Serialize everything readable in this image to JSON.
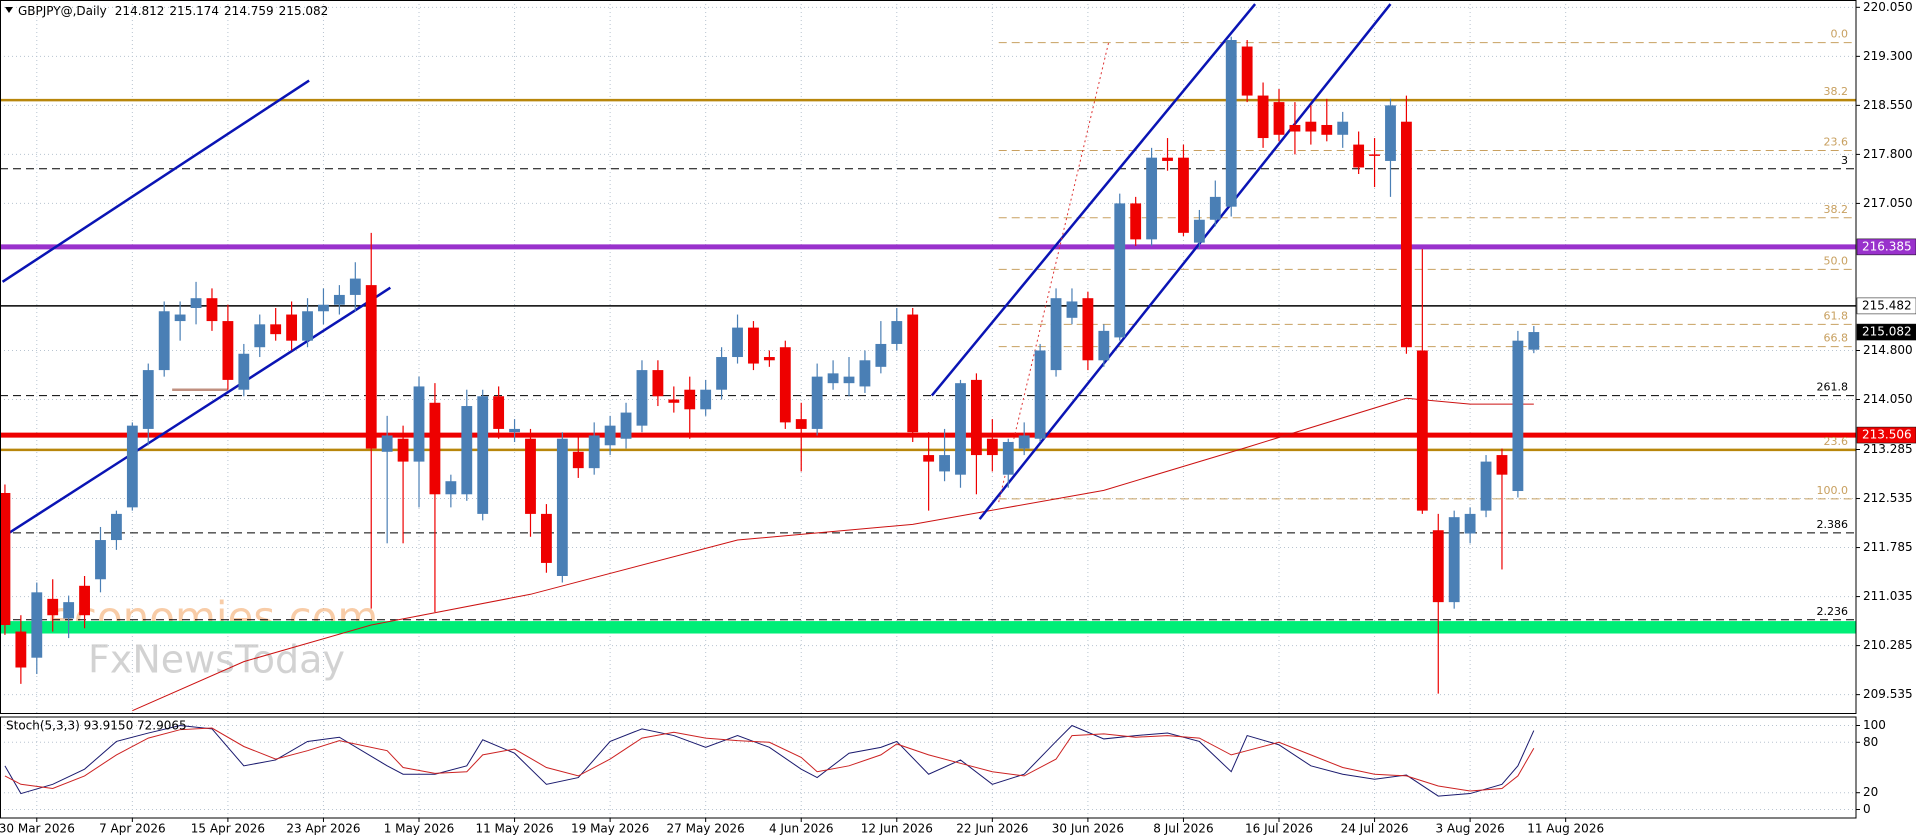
{
  "chart_data": [
    {
      "type": "candlestick",
      "title": "GBPJPY@,Daily",
      "up_color": "#4a7fb5",
      "down_color": "#ee0000",
      "open": [
        212.62,
        210.5,
        210.1,
        211.0,
        210.7,
        211.2,
        211.3,
        211.9,
        212.4,
        213.6,
        214.5,
        215.25,
        215.45,
        215.6,
        215.25,
        214.2,
        214.85,
        215.2,
        215.35,
        214.95,
        215.4,
        215.5,
        215.65,
        215.8,
        213.25,
        213.45,
        213.1,
        214.0,
        212.6,
        212.6,
        212.3,
        214.1,
        213.55,
        213.45,
        212.3,
        211.35,
        213.25,
        213.0,
        213.35,
        213.45,
        213.65,
        214.5,
        214.05,
        214.2,
        213.9,
        214.2,
        214.7,
        215.15,
        214.7,
        214.85,
        213.75,
        213.6,
        214.3,
        214.3,
        214.25,
        214.55,
        214.9,
        215.35,
        213.2,
        212.95,
        212.9,
        214.35,
        213.45,
        212.9,
        213.3,
        213.45,
        214.5,
        215.3,
        215.6,
        214.65,
        215.0,
        217.05,
        216.5,
        217.75,
        217.75,
        216.45,
        216.8,
        217.0,
        219.45,
        218.7,
        218.6,
        218.25,
        218.3,
        218.25,
        218.1,
        217.95,
        217.8,
        217.7,
        218.3,
        214.8,
        212.05,
        210.95,
        212.0,
        212.35,
        213.2,
        212.65,
        214.812
      ],
      "high": [
        212.75,
        210.75,
        211.25,
        211.3,
        211.05,
        211.35,
        212.1,
        212.35,
        213.7,
        214.6,
        215.55,
        215.55,
        215.85,
        215.75,
        215.5,
        214.9,
        215.35,
        215.45,
        215.55,
        215.6,
        215.75,
        215.8,
        216.15,
        216.6,
        213.8,
        213.65,
        214.4,
        214.3,
        212.9,
        214.2,
        214.2,
        214.25,
        213.75,
        213.6,
        212.45,
        213.55,
        213.5,
        213.7,
        213.8,
        214.0,
        214.65,
        214.65,
        214.25,
        214.4,
        214.35,
        214.85,
        215.35,
        215.25,
        214.8,
        214.95,
        214.0,
        214.6,
        214.65,
        214.7,
        214.8,
        215.25,
        215.45,
        215.45,
        213.55,
        213.6,
        214.35,
        214.45,
        213.75,
        213.45,
        213.7,
        214.9,
        215.75,
        215.75,
        215.7,
        215.2,
        217.2,
        217.15,
        217.9,
        218.05,
        217.95,
        216.95,
        217.4,
        219.6,
        219.55,
        218.9,
        218.8,
        218.6,
        218.55,
        218.65,
        218.45,
        218.15,
        218.05,
        218.65,
        218.7,
        216.35,
        212.3,
        212.35,
        212.4,
        213.2,
        213.3,
        215.1,
        215.174
      ],
      "low": [
        210.45,
        209.7,
        209.85,
        210.5,
        210.4,
        210.55,
        211.1,
        211.75,
        212.35,
        213.35,
        214.4,
        214.95,
        215.2,
        215.1,
        214.2,
        214.1,
        214.7,
        214.95,
        214.8,
        214.85,
        215.2,
        215.35,
        215.4,
        210.85,
        211.85,
        211.85,
        212.4,
        210.8,
        212.4,
        212.5,
        212.2,
        213.45,
        213.4,
        211.95,
        211.4,
        211.25,
        212.85,
        212.9,
        213.2,
        213.3,
        213.55,
        213.95,
        213.85,
        213.45,
        213.8,
        214.05,
        214.6,
        214.5,
        214.55,
        213.6,
        212.95,
        213.5,
        214.2,
        214.1,
        214.15,
        214.45,
        214.8,
        213.4,
        212.35,
        212.8,
        212.7,
        212.6,
        212.95,
        212.7,
        213.2,
        213.4,
        214.4,
        215.2,
        214.5,
        214.55,
        214.95,
        216.4,
        216.4,
        217.55,
        216.55,
        216.35,
        216.7,
        216.85,
        218.6,
        217.9,
        218.0,
        217.8,
        217.95,
        218.0,
        217.9,
        217.5,
        217.3,
        217.15,
        214.75,
        212.3,
        209.55,
        210.85,
        211.85,
        212.25,
        211.45,
        212.55,
        214.759
      ],
      "close": [
        210.6,
        209.95,
        211.1,
        210.75,
        210.95,
        210.75,
        211.9,
        212.3,
        213.65,
        214.5,
        215.4,
        215.35,
        215.6,
        215.25,
        214.35,
        214.75,
        215.2,
        215.05,
        214.95,
        215.4,
        215.5,
        215.65,
        215.9,
        213.3,
        213.5,
        213.1,
        214.25,
        212.6,
        212.8,
        213.95,
        214.1,
        213.6,
        213.6,
        212.3,
        211.55,
        213.45,
        213.0,
        213.5,
        213.65,
        213.85,
        214.5,
        214.1,
        214.0,
        213.9,
        214.2,
        214.7,
        215.15,
        214.6,
        214.65,
        213.7,
        213.6,
        214.4,
        214.45,
        214.4,
        214.65,
        214.9,
        215.25,
        213.55,
        213.1,
        213.2,
        214.3,
        213.2,
        213.2,
        213.4,
        213.5,
        214.8,
        215.6,
        215.55,
        214.65,
        215.1,
        217.05,
        216.5,
        217.75,
        217.7,
        216.6,
        216.8,
        217.15,
        219.55,
        218.7,
        218.05,
        218.1,
        218.15,
        218.15,
        218.1,
        218.3,
        217.6,
        217.78,
        218.55,
        214.85,
        212.35,
        210.95,
        212.25,
        212.3,
        213.1,
        212.9,
        214.95,
        215.082
      ],
      "xlim": [
        -0.31,
        116.23
      ],
      "ylim": [
        209.254,
        220.162
      ],
      "xticks": [
        {
          "value": 2,
          "label": "30 Mar 2026"
        },
        {
          "value": 8,
          "label": "7 Apr 2026"
        },
        {
          "value": 14,
          "label": "15 Apr 2026"
        },
        {
          "value": 20,
          "label": "23 Apr 2026"
        },
        {
          "value": 26,
          "label": "1 May 2026"
        },
        {
          "value": 32,
          "label": "11 May 2026"
        },
        {
          "value": 38,
          "label": "19 May 2026"
        },
        {
          "value": 44,
          "label": "27 May 2026"
        },
        {
          "value": 50,
          "label": "4 Jun 2026"
        },
        {
          "value": 56,
          "label": "12 Jun 2026"
        },
        {
          "value": 62,
          "label": "22 Jun 2026"
        },
        {
          "value": 68,
          "label": "30 Jun 2026"
        },
        {
          "value": 74,
          "label": "8 Jul 2026"
        },
        {
          "value": 80,
          "label": "16 Jul 2026"
        },
        {
          "value": 86,
          "label": "24 Jul 2026"
        },
        {
          "value": 92,
          "label": "3 Aug 2026"
        },
        {
          "value": 98,
          "label": "11 Aug 2026"
        }
      ],
      "yticks": [
        {
          "value": 220.05,
          "label": "220.050"
        },
        {
          "value": 219.3,
          "label": "219.300"
        },
        {
          "value": 218.55,
          "label": "218.550"
        },
        {
          "value": 217.8,
          "label": "217.800"
        },
        {
          "value": 217.05,
          "label": "217.050"
        },
        {
          "value": 214.8,
          "label": "214.800"
        },
        {
          "value": 214.05,
          "label": "214.050"
        },
        213.285,
        212.535,
        211.785,
        211.035,
        210.285,
        209.535
      ],
      "grid": true,
      "ma": {
        "color": "#cc1111",
        "x": [
          8,
          15,
          23,
          33,
          46,
          57,
          69,
          78,
          88,
          92,
          96
        ],
        "values": [
          209.29,
          210.04,
          210.6,
          211.07,
          211.9,
          212.14,
          212.66,
          213.32,
          214.07,
          213.98,
          213.98
        ]
      },
      "zones": [
        {
          "from": 210.47,
          "to": 210.66,
          "color": "#00ee77"
        }
      ],
      "levels": [
        {
          "value": 219.51,
          "label": "0.0",
          "color": "#c8a060",
          "width": 1,
          "dash": true,
          "start": 62.4
        },
        {
          "value": 218.63,
          "label": "38.2",
          "color": "#b8860b",
          "width": 2.5,
          "dash": false
        },
        {
          "value": 217.86,
          "label": "23.6",
          "color": "#c8a060",
          "width": 1,
          "dash": true,
          "start": 62.4
        },
        {
          "value": 217.58,
          "label": "3",
          "color": "#000000",
          "width": 1,
          "dash": true
        },
        {
          "value": 216.83,
          "label": "38.2",
          "color": "#c8a060",
          "width": 1,
          "dash": true,
          "start": 62.4
        },
        {
          "value": 216.385,
          "color": "#9932cc",
          "width": 5,
          "dash": false,
          "box": "#9932cc",
          "box_text": "#ffffff"
        },
        {
          "value": 216.04,
          "label": "50.0",
          "color": "#c8a060",
          "width": 1,
          "dash": true,
          "start": 62.4
        },
        {
          "value": 215.482,
          "color": "#000000",
          "width": 1.5,
          "dash": false,
          "box": "#ffffff",
          "box_text": "#000000"
        },
        {
          "value": 215.2,
          "label": "61.8",
          "color": "#c8a060",
          "width": 1,
          "dash": true,
          "start": 62.4
        },
        {
          "value": 215.082,
          "color": "#000000",
          "width": 0,
          "dash": false,
          "box": "#000000",
          "box_text": "#ffffff"
        },
        {
          "value": 214.86,
          "label": "66.8",
          "color": "#c8a060",
          "width": 1,
          "dash": true,
          "start": 62.4
        },
        {
          "value": 214.11,
          "label": "261.8",
          "color": "#000000",
          "width": 1,
          "dash": true
        },
        {
          "value": 213.506,
          "color": "#ee0000",
          "width": 5,
          "dash": false,
          "box": "#ee0000",
          "box_text": "#ffffff"
        },
        {
          "value": 213.28,
          "label": "23.6",
          "color": "#b8860b",
          "width": 2.5,
          "dash": false
        },
        {
          "value": 212.53,
          "label": "100.0",
          "color": "#c8a060",
          "width": 1,
          "dash": true,
          "start": 62.4
        },
        {
          "value": 212.01,
          "label": "2.386",
          "color": "#000000",
          "width": 1,
          "dash": true
        },
        {
          "value": 210.68,
          "label": "2.236",
          "color": "#000000",
          "width": 1,
          "dash": true
        }
      ],
      "trendlines": [
        {
          "x": [
            -0.31,
            24.2
          ],
          "y": [
            211.92,
            215.76
          ],
          "color": "#0a14b4",
          "dash": false
        },
        {
          "x": [
            -0.15,
            19.1
          ],
          "y": [
            215.85,
            218.93
          ],
          "color": "#0a14b4",
          "dash": false
        },
        {
          "x": [
            58.2,
            78.5
          ],
          "y": [
            214.11,
            220.1
          ],
          "color": "#0a14b4",
          "dash": false
        },
        {
          "x": [
            61.2,
            87
          ],
          "y": [
            212.22,
            220.1
          ],
          "color": "#0a14b4",
          "dash": false
        },
        {
          "x": [
            62.4,
            69.3
          ],
          "y": [
            212.48,
            219.51
          ],
          "color": "#dd3333",
          "dash": true
        },
        {
          "x": [
            10.5,
            14
          ],
          "y": [
            214.2,
            214.2
          ],
          "color": "#c09080",
          "dash": false
        }
      ],
      "watermark": [
        "economies.com",
        "FxNewsToday"
      ]
    },
    {
      "type": "line",
      "title": "Stoch(5,3,3) 93.9150 72.9065",
      "x": [
        0,
        1,
        3,
        5,
        7,
        9,
        11,
        13,
        15,
        17,
        19,
        21,
        24,
        25,
        27,
        29,
        30,
        32,
        34,
        36,
        38,
        40,
        42,
        44,
        46,
        48,
        50,
        51,
        53,
        55,
        56,
        58,
        60,
        62,
        64,
        66,
        67,
        69,
        71,
        73,
        75,
        77,
        78,
        80,
        82,
        84,
        86,
        88,
        90,
        92,
        94,
        95,
        96
      ],
      "series": [
        {
          "color": "#1a1a6e",
          "values": [
            52,
            19,
            30,
            48,
            81,
            91,
            100,
            96,
            52,
            59,
            81,
            86,
            52,
            42,
            42,
            52,
            83,
            67,
            30,
            38,
            81,
            96,
            88,
            74,
            88,
            74,
            48,
            38,
            67,
            74,
            81,
            42,
            59,
            30,
            42,
            81,
            100,
            84,
            88,
            91,
            81,
            45,
            88,
            77,
            52,
            42,
            36,
            41,
            16,
            19,
            30,
            52,
            93.915
          ]
        },
        {
          "color": "#cc2222",
          "values": [
            40,
            30,
            25,
            40,
            65,
            85,
            95,
            97,
            75,
            60,
            70,
            82,
            70,
            50,
            43,
            45,
            65,
            72,
            50,
            40,
            60,
            85,
            92,
            85,
            82,
            80,
            62,
            45,
            52,
            65,
            78,
            65,
            55,
            45,
            40,
            60,
            88,
            90,
            86,
            88,
            85,
            65,
            70,
            80,
            65,
            50,
            42,
            40,
            28,
            22,
            25,
            40,
            72.9065
          ]
        }
      ],
      "ylim": [
        -10.1,
        110.1
      ],
      "yticks": [
        100,
        80,
        20,
        0
      ],
      "grid": true
    }
  ]
}
